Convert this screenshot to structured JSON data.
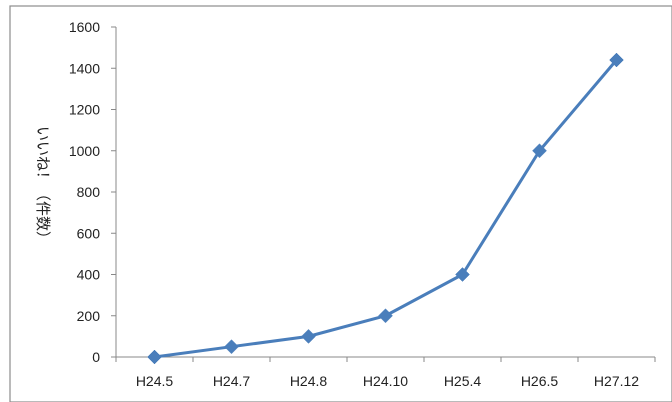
{
  "chart_data": {
    "type": "line",
    "title": "",
    "xlabel": "",
    "ylabel": "いいね！（件数）",
    "categories": [
      "H24.5",
      "H24.7",
      "H24.8",
      "H24.10",
      "H25.4",
      "H26.5",
      "H27.12"
    ],
    "series": [
      {
        "values": [
          0,
          50,
          100,
          200,
          400,
          1000,
          1440
        ]
      }
    ],
    "ylim": [
      0,
      1600
    ],
    "yticks": [
      "0",
      "200",
      "400",
      "600",
      "800",
      "1000",
      "1200",
      "1400",
      "1600"
    ],
    "grid": false,
    "legend": "none",
    "colors": {
      "line": "#4a7ebb",
      "marker": "#4a7ebb",
      "axis": "#888888",
      "border": "#888888"
    }
  }
}
